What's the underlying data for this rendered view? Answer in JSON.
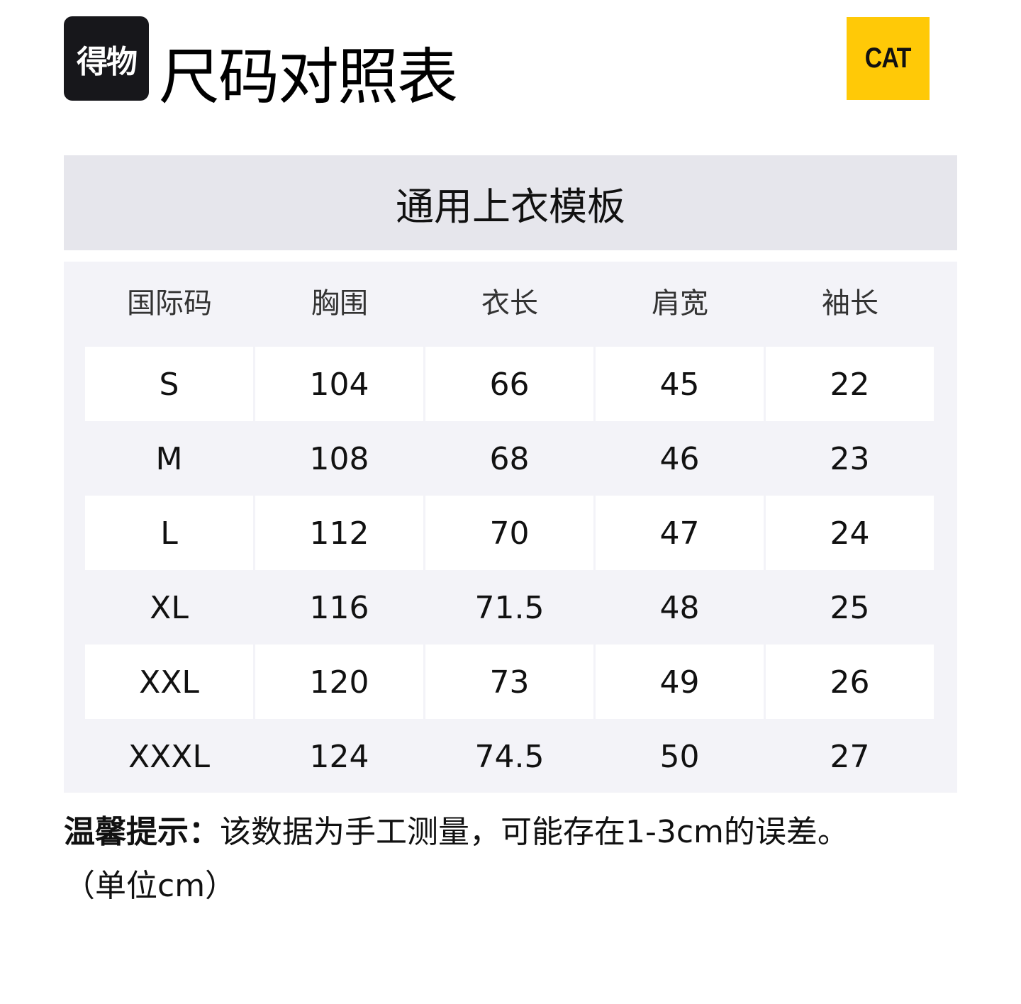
{
  "header": {
    "logo_text": "得物",
    "title": "尺码对照表",
    "brand_logo": "CAT"
  },
  "colors": {
    "brand_yellow": "#ffc907",
    "banner_bg": "#e6e6ec",
    "table_bg": "#f3f3f8"
  },
  "table": {
    "title": "通用上衣模板",
    "columns": [
      "国际码",
      "胸围",
      "衣长",
      "肩宽",
      "袖长"
    ],
    "rows": [
      [
        "S",
        "104",
        "66",
        "45",
        "22"
      ],
      [
        "M",
        "108",
        "68",
        "46",
        "23"
      ],
      [
        "L",
        "112",
        "70",
        "47",
        "24"
      ],
      [
        "XL",
        "116",
        "71.5",
        "48",
        "25"
      ],
      [
        "XXL",
        "120",
        "73",
        "49",
        "26"
      ],
      [
        "XXXL",
        "124",
        "74.5",
        "50",
        "27"
      ]
    ]
  },
  "note": {
    "label": "温馨提示：",
    "text": "该数据为手工测量，可能存在1-3cm的误差。",
    "unit": "（单位cm）"
  }
}
